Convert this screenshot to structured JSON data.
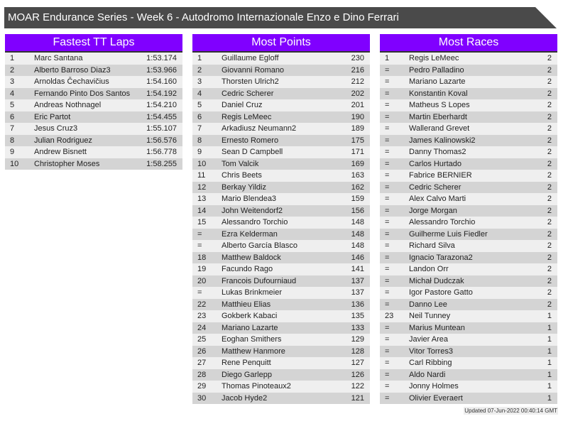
{
  "title": "MOAR Endurance Series - Week 6 - Autodromo Internazionale Enzo e Dino Ferrari",
  "updated": "Updated 07-Jun-2022 00:40:14 GMT",
  "colors": {
    "header": "#8000ff",
    "titlebar": "#4a4a4a",
    "row_odd": "#efefef",
    "row_even": "#d4d4d4"
  },
  "tables": [
    {
      "title": "Fastest TT Laps",
      "rows": [
        [
          "1",
          "Marc Santana",
          "1:53.174"
        ],
        [
          "2",
          "Alberto Barroso Diaz3",
          "1:53.966"
        ],
        [
          "3",
          "Arnoldas Čechavičius",
          "1:54.160"
        ],
        [
          "4",
          "Fernando Pinto Dos Santos",
          "1:54.192"
        ],
        [
          "5",
          "Andreas Nothnagel",
          "1:54.210"
        ],
        [
          "6",
          "Eric Partot",
          "1:54.455"
        ],
        [
          "7",
          "Jesus Cruz3",
          "1:55.107"
        ],
        [
          "8",
          "Julian Rodriguez",
          "1:56.576"
        ],
        [
          "9",
          "Andrew Bisnett",
          "1:56.778"
        ],
        [
          "10",
          "Christopher Moses",
          "1:58.255"
        ]
      ]
    },
    {
      "title": "Most Points",
      "rows": [
        [
          "1",
          "Guillaume Egloff",
          "230"
        ],
        [
          "2",
          "Giovanni Romano",
          "216"
        ],
        [
          "3",
          "Thorsten Ulrich2",
          "212"
        ],
        [
          "4",
          "Cedric Scherer",
          "202"
        ],
        [
          "5",
          "Daniel Cruz",
          "201"
        ],
        [
          "6",
          "Regis LeMeec",
          "190"
        ],
        [
          "7",
          "Arkadiusz Neumann2",
          "189"
        ],
        [
          "8",
          "Ernesto Romero",
          "175"
        ],
        [
          "9",
          "Sean D Campbell",
          "171"
        ],
        [
          "10",
          "Tom Valcik",
          "169"
        ],
        [
          "11",
          "Chris Beets",
          "163"
        ],
        [
          "12",
          "Berkay Yildiz",
          "162"
        ],
        [
          "13",
          "Mario Blendea3",
          "159"
        ],
        [
          "14",
          "John Weitendorf2",
          "156"
        ],
        [
          "15",
          "Alessandro Torchio",
          "148"
        ],
        [
          "=",
          "Ezra Kelderman",
          "148"
        ],
        [
          "=",
          "Alberto García Blasco",
          "148"
        ],
        [
          "18",
          "Matthew Baldock",
          "146"
        ],
        [
          "19",
          "Facundo Rago",
          "141"
        ],
        [
          "20",
          "Francois Dufourniaud",
          "137"
        ],
        [
          "=",
          "Lukas Brinkmeier",
          "137"
        ],
        [
          "22",
          "Matthieu Elias",
          "136"
        ],
        [
          "23",
          "Gokberk Kabaci",
          "135"
        ],
        [
          "24",
          "Mariano Lazarte",
          "133"
        ],
        [
          "25",
          "Eoghan Smithers",
          "129"
        ],
        [
          "26",
          "Matthew Hanmore",
          "128"
        ],
        [
          "27",
          "Rene Penquitt",
          "127"
        ],
        [
          "28",
          "Diego Garlepp",
          "126"
        ],
        [
          "29",
          "Thomas Pinoteaux2",
          "122"
        ],
        [
          "30",
          "Jacob Hyde2",
          "121"
        ]
      ]
    },
    {
      "title": "Most Races",
      "rows": [
        [
          "1",
          "Regis LeMeec",
          "2"
        ],
        [
          "=",
          "Pedro Palladino",
          "2"
        ],
        [
          "=",
          "Mariano Lazarte",
          "2"
        ],
        [
          "=",
          "Konstantin Koval",
          "2"
        ],
        [
          "=",
          "Matheus S Lopes",
          "2"
        ],
        [
          "=",
          "Martin Eberhardt",
          "2"
        ],
        [
          "=",
          "Wallerand Grevet",
          "2"
        ],
        [
          "=",
          "James Kalinowski2",
          "2"
        ],
        [
          "=",
          "Danny Thomas2",
          "2"
        ],
        [
          "=",
          "Carlos Hurtado",
          "2"
        ],
        [
          "=",
          "Fabrice BERNIER",
          "2"
        ],
        [
          "=",
          "Cedric Scherer",
          "2"
        ],
        [
          "=",
          "Alex Calvo Marti",
          "2"
        ],
        [
          "=",
          "Jorge Morgan",
          "2"
        ],
        [
          "=",
          "Alessandro Torchio",
          "2"
        ],
        [
          "=",
          "Guilherme Luis Fiedler",
          "2"
        ],
        [
          "=",
          "Richard Silva",
          "2"
        ],
        [
          "=",
          "Ignacio Tarazona2",
          "2"
        ],
        [
          "=",
          "Landon Orr",
          "2"
        ],
        [
          "=",
          "Michał Dudczak",
          "2"
        ],
        [
          "=",
          "Igor Pastore Gatto",
          "2"
        ],
        [
          "=",
          "Danno Lee",
          "2"
        ],
        [
          "23",
          "Neil Tunney",
          "1"
        ],
        [
          "=",
          "Marius Muntean",
          "1"
        ],
        [
          "=",
          "Javier Area",
          "1"
        ],
        [
          "=",
          "Vitor Torres3",
          "1"
        ],
        [
          "=",
          "Carl Ribbing",
          "1"
        ],
        [
          "=",
          "Aldo Nardi",
          "1"
        ],
        [
          "=",
          "Jonny Holmes",
          "1"
        ],
        [
          "=",
          "Olivier Everaert",
          "1"
        ]
      ]
    }
  ]
}
